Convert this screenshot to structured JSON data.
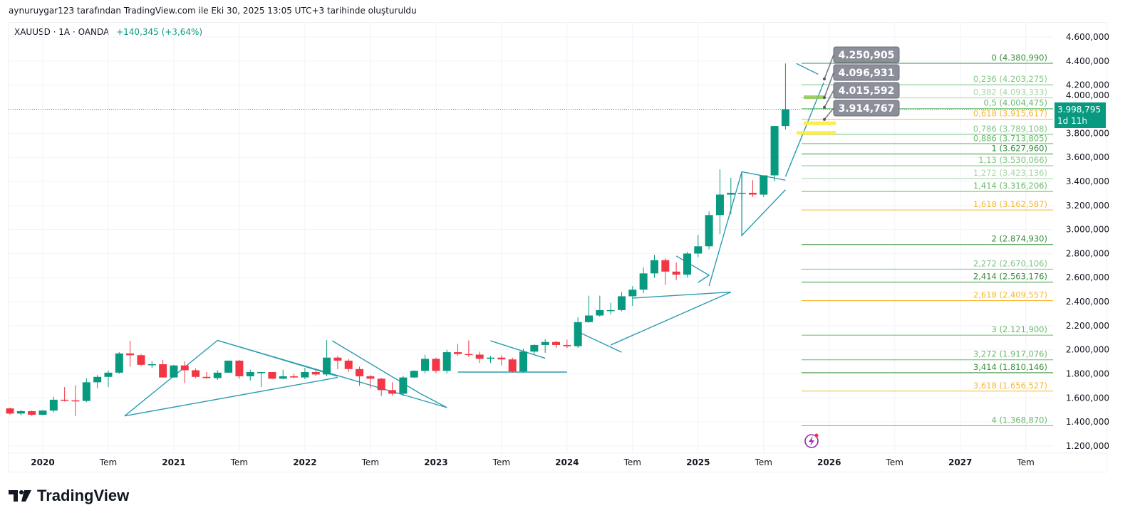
{
  "caption": "aynuruygar123 tarafından TradingView.com ile Eki 30, 2025 13:05 UTC+3 tarihinde oluşturuldu",
  "legend": {
    "symbol": "XAUUSD · 1A · OANDA",
    "change": "+140,345 (+3,64%)"
  },
  "brand": "TradingView",
  "last_price": {
    "value": "3.998,795",
    "countdown": "1d 11h"
  },
  "colors": {
    "up": "#089981",
    "down": "#f23645",
    "trend": "#2a9bb0",
    "fib_green": "#4caf50",
    "fib_gold": "#f5b82e"
  },
  "chart_data": {
    "type": "candlestick",
    "title": "XAUUSD · 1A · OANDA",
    "ylim": [
      1150000,
      4680000
    ],
    "y_ticks": [
      "4.600,000",
      "4.400,000",
      "4.200,000",
      "4.000,000",
      "3.800,000",
      "3.600,000",
      "3.400,000",
      "3.200,000",
      "3.000,000",
      "2.800,000",
      "2.600,000",
      "2.400,000",
      "2.200,000",
      "2.000,000",
      "1.800,000",
      "1.600,000",
      "1.400,000",
      "1.200,000"
    ],
    "y_tick_values": [
      4600000,
      4400000,
      4200000,
      4000000,
      3800000,
      3600000,
      3400000,
      3200000,
      3000000,
      2800000,
      2600000,
      2400000,
      2200000,
      2000000,
      1800000,
      1600000,
      1400000,
      1200000
    ],
    "x_ticks": [
      {
        "label": "2020",
        "month": 3,
        "bold": true
      },
      {
        "label": "Tem",
        "month": 9,
        "bold": false
      },
      {
        "label": "2021",
        "month": 15,
        "bold": true
      },
      {
        "label": "Tem",
        "month": 21,
        "bold": false
      },
      {
        "label": "2022",
        "month": 27,
        "bold": true
      },
      {
        "label": "Tem",
        "month": 33,
        "bold": false
      },
      {
        "label": "2023",
        "month": 39,
        "bold": true
      },
      {
        "label": "Tem",
        "month": 45,
        "bold": false
      },
      {
        "label": "2024",
        "month": 51,
        "bold": true
      },
      {
        "label": "Tem",
        "month": 57,
        "bold": false
      },
      {
        "label": "2025",
        "month": 63,
        "bold": true
      },
      {
        "label": "Tem",
        "month": 69,
        "bold": false
      },
      {
        "label": "2026",
        "month": 75,
        "bold": true
      },
      {
        "label": "Tem",
        "month": 81,
        "bold": false
      },
      {
        "label": "2027",
        "month": 87,
        "bold": true
      },
      {
        "label": "Tem",
        "month": 93,
        "bold": false
      }
    ],
    "candles": [
      [
        1513,
        1519,
        1460,
        1470
      ],
      [
        1470,
        1500,
        1455,
        1490
      ],
      [
        1490,
        1495,
        1450,
        1460
      ],
      [
        1460,
        1500,
        1455,
        1495
      ],
      [
        1495,
        1610,
        1480,
        1585
      ],
      [
        1585,
        1690,
        1570,
        1580
      ],
      [
        1580,
        1705,
        1450,
        1575
      ],
      [
        1575,
        1765,
        1565,
        1730
      ],
      [
        1730,
        1790,
        1680,
        1775
      ],
      [
        1775,
        1830,
        1690,
        1810
      ],
      [
        1810,
        1980,
        1800,
        1970
      ],
      [
        1970,
        2075,
        1860,
        1955
      ],
      [
        1955,
        1965,
        1865,
        1875
      ],
      [
        1875,
        1905,
        1850,
        1880
      ],
      [
        1880,
        1915,
        1770,
        1770
      ],
      [
        1770,
        1875,
        1770,
        1870
      ],
      [
        1870,
        1905,
        1725,
        1830
      ],
      [
        1830,
        1845,
        1765,
        1775
      ],
      [
        1775,
        1815,
        1760,
        1765
      ],
      [
        1765,
        1830,
        1750,
        1810
      ],
      [
        1810,
        1910,
        1810,
        1910
      ],
      [
        1910,
        1916,
        1760,
        1780
      ],
      [
        1780,
        1835,
        1745,
        1815
      ],
      [
        1815,
        1815,
        1690,
        1815
      ],
      [
        1815,
        1815,
        1755,
        1760
      ],
      [
        1760,
        1835,
        1755,
        1780
      ],
      [
        1780,
        1800,
        1765,
        1770
      ],
      [
        1770,
        1850,
        1755,
        1815
      ],
      [
        1815,
        1830,
        1780,
        1795
      ],
      [
        1795,
        2080,
        1780,
        1935
      ],
      [
        1935,
        1950,
        1840,
        1910
      ],
      [
        1910,
        1925,
        1815,
        1840
      ],
      [
        1840,
        1860,
        1700,
        1780
      ],
      [
        1780,
        1790,
        1680,
        1760
      ],
      [
        1760,
        1765,
        1615,
        1665
      ],
      [
        1665,
        1730,
        1620,
        1635
      ],
      [
        1635,
        1785,
        1615,
        1770
      ],
      [
        1770,
        1830,
        1765,
        1825
      ],
      [
        1825,
        1960,
        1805,
        1925
      ],
      [
        1925,
        1935,
        1805,
        1825
      ],
      [
        1825,
        2000,
        1805,
        1980
      ],
      [
        1980,
        2050,
        1950,
        1965
      ],
      [
        1965,
        2078,
        1940,
        1960
      ],
      [
        1960,
        1985,
        1890,
        1925
      ],
      [
        1925,
        1950,
        1890,
        1935
      ],
      [
        1935,
        1955,
        1870,
        1920
      ],
      [
        1920,
        1935,
        1810,
        1820
      ],
      [
        1820,
        2010,
        1810,
        1985
      ],
      [
        1985,
        2045,
        1965,
        2040
      ],
      [
        2040,
        2089,
        1975,
        2065
      ],
      [
        2065,
        2075,
        2015,
        2040
      ],
      [
        2040,
        2085,
        2015,
        2030
      ],
      [
        2030,
        2270,
        2015,
        2230
      ],
      [
        2230,
        2450,
        2225,
        2285
      ],
      [
        2285,
        2450,
        2275,
        2330
      ],
      [
        2330,
        2390,
        2295,
        2330
      ],
      [
        2330,
        2480,
        2320,
        2445
      ],
      [
        2445,
        2530,
        2365,
        2500
      ],
      [
        2500,
        2685,
        2470,
        2635
      ],
      [
        2635,
        2790,
        2600,
        2745
      ],
      [
        2745,
        2760,
        2540,
        2650
      ],
      [
        2650,
        2725,
        2580,
        2625
      ],
      [
        2625,
        2815,
        2600,
        2800
      ],
      [
        2800,
        2955,
        2770,
        2860
      ],
      [
        2860,
        3150,
        2835,
        3120
      ],
      [
        3120,
        3500,
        2960,
        3290
      ],
      [
        3290,
        3430,
        3125,
        3305
      ],
      [
        3305,
        3450,
        3240,
        3305
      ],
      [
        3305,
        3410,
        3270,
        3290
      ],
      [
        3290,
        3440,
        3270,
        3450
      ],
      [
        3450,
        3860,
        3400,
        3860
      ],
      [
        3860,
        4380,
        3830,
        3999
      ]
    ],
    "first_month_index": 0,
    "price_unit_multiplier": 1000,
    "fib_levels": [
      {
        "label": "0 (4.380,990)",
        "value": 4380990,
        "color": "#388e3c"
      },
      {
        "label": "0,236 (4.203,275)",
        "value": 4203275,
        "color": "#81c784"
      },
      {
        "label": "0,382 (4.093,333)",
        "value": 4093333,
        "color": "#a5d6a7"
      },
      {
        "label": "0,5 (4.004,475)",
        "value": 4004475,
        "color": "#66bb6a"
      },
      {
        "label": "0,618 (3.915,617)",
        "value": 3915617,
        "color": "#f5b82e"
      },
      {
        "label": "0,786 (3.789,108)",
        "value": 3789108,
        "color": "#81c784"
      },
      {
        "label": "0,886 (3.713,805)",
        "value": 3713805,
        "color": "#66bb6a"
      },
      {
        "label": "1 (3.627,960)",
        "value": 3627960,
        "color": "#388e3c"
      },
      {
        "label": "1,13 (3.530,066)",
        "value": 3530066,
        "color": "#81c784"
      },
      {
        "label": "1,272 (3.423,136)",
        "value": 3423136,
        "color": "#a5d6a7"
      },
      {
        "label": "1,414 (3.316,206)",
        "value": 3316206,
        "color": "#66bb6a"
      },
      {
        "label": "1,618 (3.162,587)",
        "value": 3162587,
        "color": "#f5b82e"
      },
      {
        "label": "2 (2.874,930)",
        "value": 2874930,
        "color": "#388e3c"
      },
      {
        "label": "2,272 (2.670,106)",
        "value": 2670106,
        "color": "#81c784"
      },
      {
        "label": "2,414 (2.563,176)",
        "value": 2563176,
        "color": "#388e3c"
      },
      {
        "label": "2,618 (2.409,557)",
        "value": 2409557,
        "color": "#f5b82e"
      },
      {
        "label": "3 (2.121,900)",
        "value": 2121900,
        "color": "#66bb6a"
      },
      {
        "label": "3,272 (1.917,076)",
        "value": 1917076,
        "color": "#66bb6a"
      },
      {
        "label": "3,414 (1.810,146)",
        "value": 1810146,
        "color": "#388e3c"
      },
      {
        "label": "3,618 (1.656,527)",
        "value": 1656527,
        "color": "#f5b82e"
      },
      {
        "label": "4 (1.368,870)",
        "value": 1368870,
        "color": "#66bb6a"
      }
    ],
    "callouts": [
      {
        "label": "4.250,905",
        "value": 4250905
      },
      {
        "label": "4.096,931",
        "value": 4096931
      },
      {
        "label": "4.015,592",
        "value": 4015592
      },
      {
        "label": "3.914,767",
        "value": 3914767
      }
    ],
    "trendlines": [
      [
        [
          10.5,
          1450
        ],
        [
          19,
          2078
        ],
        [
          30,
          1780
        ]
      ],
      [
        [
          10.5,
          1450
        ],
        [
          30,
          1770
        ]
      ],
      [
        [
          29.5,
          2075
        ],
        [
          37.5,
          1640
        ],
        [
          40,
          1520
        ]
      ],
      [
        [
          19,
          2078
        ],
        [
          40,
          1520
        ]
      ],
      [
        [
          44,
          2075
        ],
        [
          49,
          1930
        ]
      ],
      [
        [
          41,
          1815
        ],
        [
          51,
          1815
        ]
      ],
      [
        [
          52,
          2150
        ],
        [
          56,
          1980
        ]
      ],
      [
        [
          55,
          2040
        ],
        [
          66,
          2480
        ]
      ],
      [
        [
          57,
          2430
        ],
        [
          66,
          2480
        ]
      ],
      [
        [
          61,
          2780
        ],
        [
          64,
          2620
        ],
        [
          63,
          2560
        ]
      ],
      [
        [
          64,
          2530
        ],
        [
          67,
          3480
        ],
        [
          71,
          3410
        ]
      ],
      [
        [
          67,
          3480
        ],
        [
          67,
          2950
        ],
        [
          71,
          3330
        ]
      ],
      [
        [
          72,
          4380
        ],
        [
          74,
          4290
        ]
      ],
      [
        [
          71,
          3440
        ],
        [
          74.5,
          4220
        ]
      ]
    ]
  }
}
